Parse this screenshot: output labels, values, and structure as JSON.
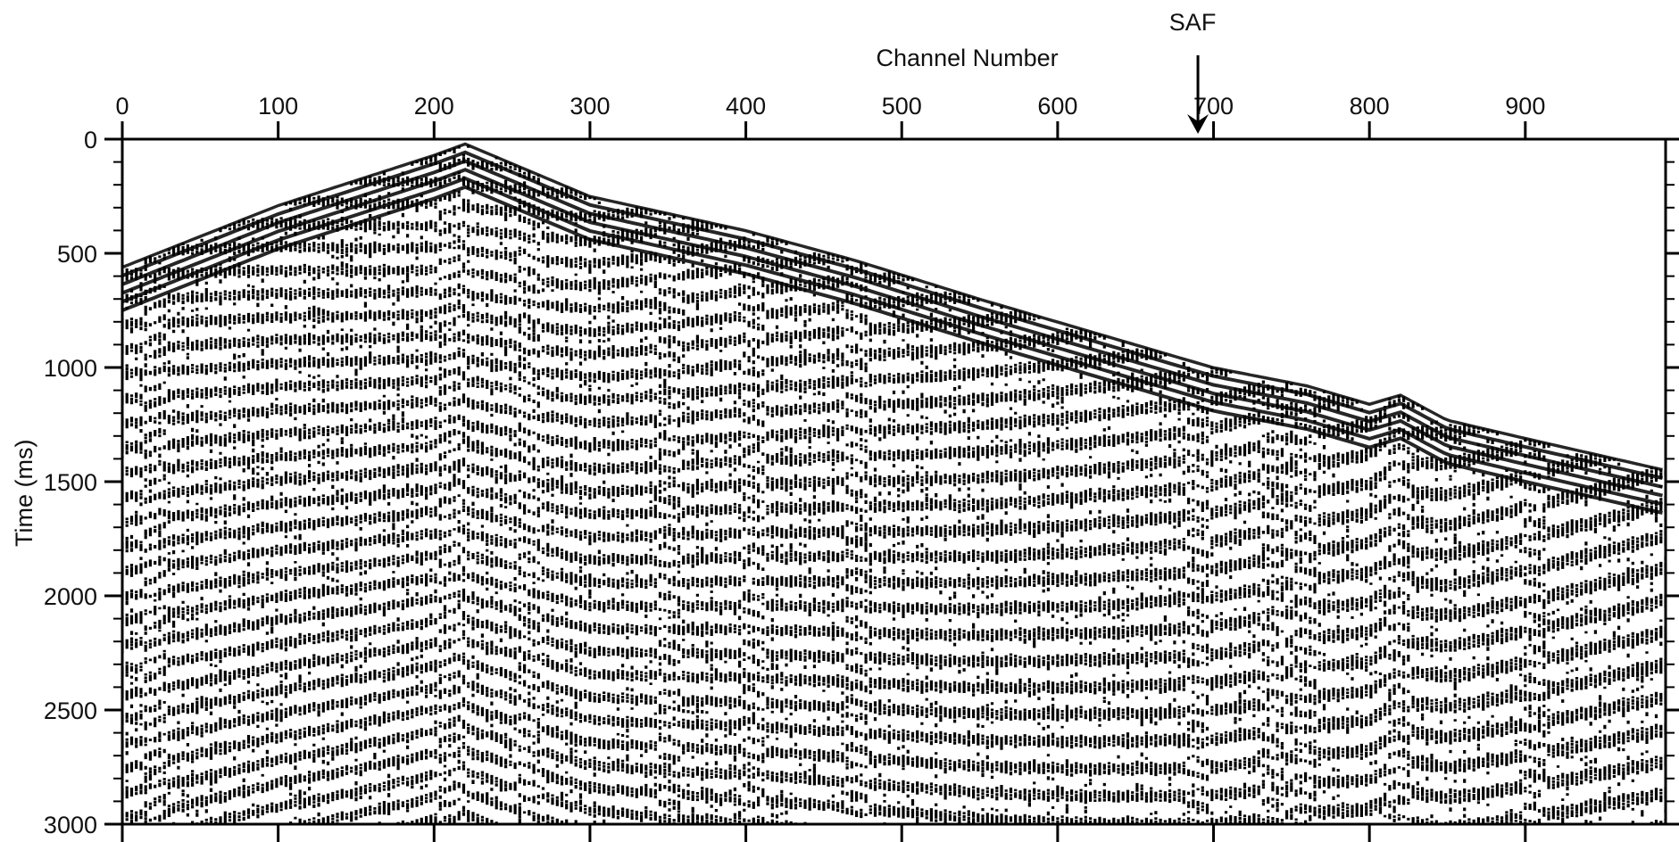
{
  "chart_data": {
    "type": "heatmap",
    "title": "",
    "xlabel": "Channel Number",
    "ylabel": "Time (ms)",
    "x_axis_position": "top",
    "xlim": [
      0,
      990
    ],
    "ylim": [
      0,
      3000
    ],
    "y_inverted": true,
    "x_ticks": [
      0,
      100,
      200,
      300,
      400,
      500,
      600,
      700,
      800,
      900
    ],
    "x_tick_labels": [
      "0",
      "100",
      "200",
      "300",
      "400",
      "500",
      "600",
      "700",
      "800",
      "900"
    ],
    "y_ticks": [
      0,
      500,
      1000,
      1500,
      2000,
      2500,
      3000
    ],
    "y_tick_labels": [
      "0",
      "500",
      "1000",
      "1500",
      "2000",
      "2500",
      "3000"
    ],
    "annotation": {
      "text": "SAF",
      "channel": 690,
      "marker": "down-arrow"
    },
    "first_break": {
      "channel": [
        0,
        100,
        200,
        220,
        300,
        400,
        470,
        550,
        640,
        700,
        760,
        800,
        820,
        850,
        900,
        990
      ],
      "time_ms": [
        560,
        290,
        70,
        20,
        250,
        400,
        530,
        700,
        880,
        1000,
        1080,
        1160,
        1120,
        1230,
        1310,
        1450
      ]
    },
    "source_channel": 220,
    "colors": {
      "ink": "#000000",
      "background": "#ffffff"
    }
  }
}
